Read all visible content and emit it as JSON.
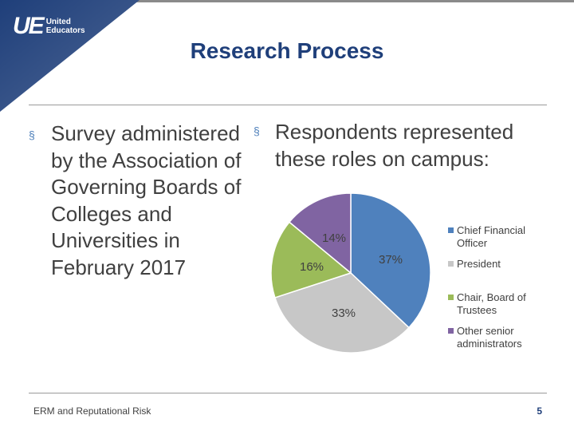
{
  "brand": {
    "logo_mark": "UE",
    "logo_line1": "United",
    "logo_line2": "Educators",
    "accent_color": "#1f3f7a",
    "bullet_color": "#4d7fba"
  },
  "slide": {
    "title": "Research Process",
    "left_bullet": "Survey administered by the Association of Governing Boards of Colleges and Universities in February 2017",
    "right_bullet": "Respondents represented these roles on campus:",
    "bullet_glyph": "§"
  },
  "footer": {
    "left_text": "ERM and Reputational Risk",
    "page_number": "5"
  },
  "chart_data": {
    "type": "pie",
    "title": "",
    "legend_position": "right",
    "slices": [
      {
        "name": "Chief Financial Officer",
        "legend_lines": [
          "Chief Financial",
          "Officer"
        ],
        "value": 37,
        "label": "37%",
        "color": "#4f81bd"
      },
      {
        "name": "President",
        "legend_lines": [
          "President"
        ],
        "value": 33,
        "label": "33%",
        "color": "#c7c7c7"
      },
      {
        "name": "Chair, Board of Trustees",
        "legend_lines": [
          "Chair, Board of",
          "Trustees"
        ],
        "value": 16,
        "label": "16%",
        "color": "#9bbb59"
      },
      {
        "name": "Other senior administrators",
        "legend_lines": [
          "Other senior",
          "administrators"
        ],
        "value": 14,
        "label": "14%",
        "color": "#8064a2"
      }
    ]
  }
}
